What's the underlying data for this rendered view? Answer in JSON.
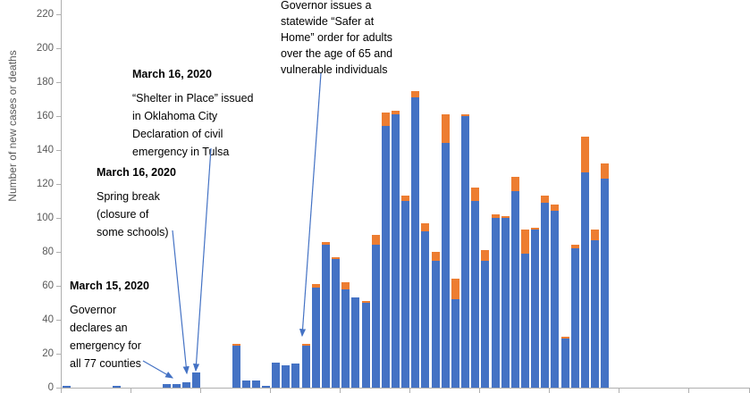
{
  "chart_data": {
    "type": "bar",
    "stacked": true,
    "title": "",
    "xlabel": "",
    "ylabel": "Number of new cases or deaths",
    "ylim": [
      0,
      230
    ],
    "yticks": [
      0,
      20,
      40,
      60,
      80,
      100,
      120,
      140,
      160,
      180,
      200,
      220
    ],
    "x_axis_tick_labels_visible": false,
    "grid": false,
    "legend": "none",
    "series": [
      {
        "name": "New cases",
        "color": "#4472C4",
        "values": [
          1,
          0,
          0,
          0,
          0,
          1,
          0,
          0,
          0,
          0,
          2,
          2,
          3,
          9,
          0,
          0,
          0,
          25,
          4,
          4,
          1,
          15,
          13,
          14,
          25,
          59,
          84,
          76,
          58,
          53,
          50,
          84,
          154,
          161,
          110,
          171,
          92,
          75,
          144,
          52,
          160,
          110,
          75,
          100,
          100,
          116,
          79,
          93,
          109,
          104,
          29,
          82,
          127,
          87,
          123
        ]
      },
      {
        "name": "Deaths",
        "color": "#ED7D31",
        "values": [
          0,
          0,
          0,
          0,
          0,
          0,
          0,
          0,
          0,
          0,
          0,
          0,
          0,
          0,
          0,
          0,
          0,
          1,
          0,
          0,
          0,
          0,
          0,
          0,
          1,
          2,
          2,
          1,
          4,
          0,
          1,
          6,
          8,
          2,
          3,
          4,
          5,
          5,
          17,
          12,
          1,
          8,
          6,
          2,
          1,
          8,
          14,
          1,
          4,
          4,
          1,
          2,
          21,
          6,
          9
        ]
      }
    ],
    "annotations": [
      {
        "heading": "March 15, 2020",
        "body": "Governor\ndeclares an\nemergency for\nall 77 counties"
      },
      {
        "heading": "March 16, 2020",
        "body": "Spring break\n(closure of\nsome schools)"
      },
      {
        "heading": "March 16, 2020",
        "body": "“Shelter in Place” issued\nin Oklahoma City\nDeclaration of civil\nemergency in Tulsa"
      },
      {
        "heading": "",
        "body": "Governor issues a\nstatewide “Safer at\nHome” order for adults\nover the age of 65 and\nvulnerable individuals"
      }
    ],
    "annotation_arrow_color": "#4472C4"
  }
}
